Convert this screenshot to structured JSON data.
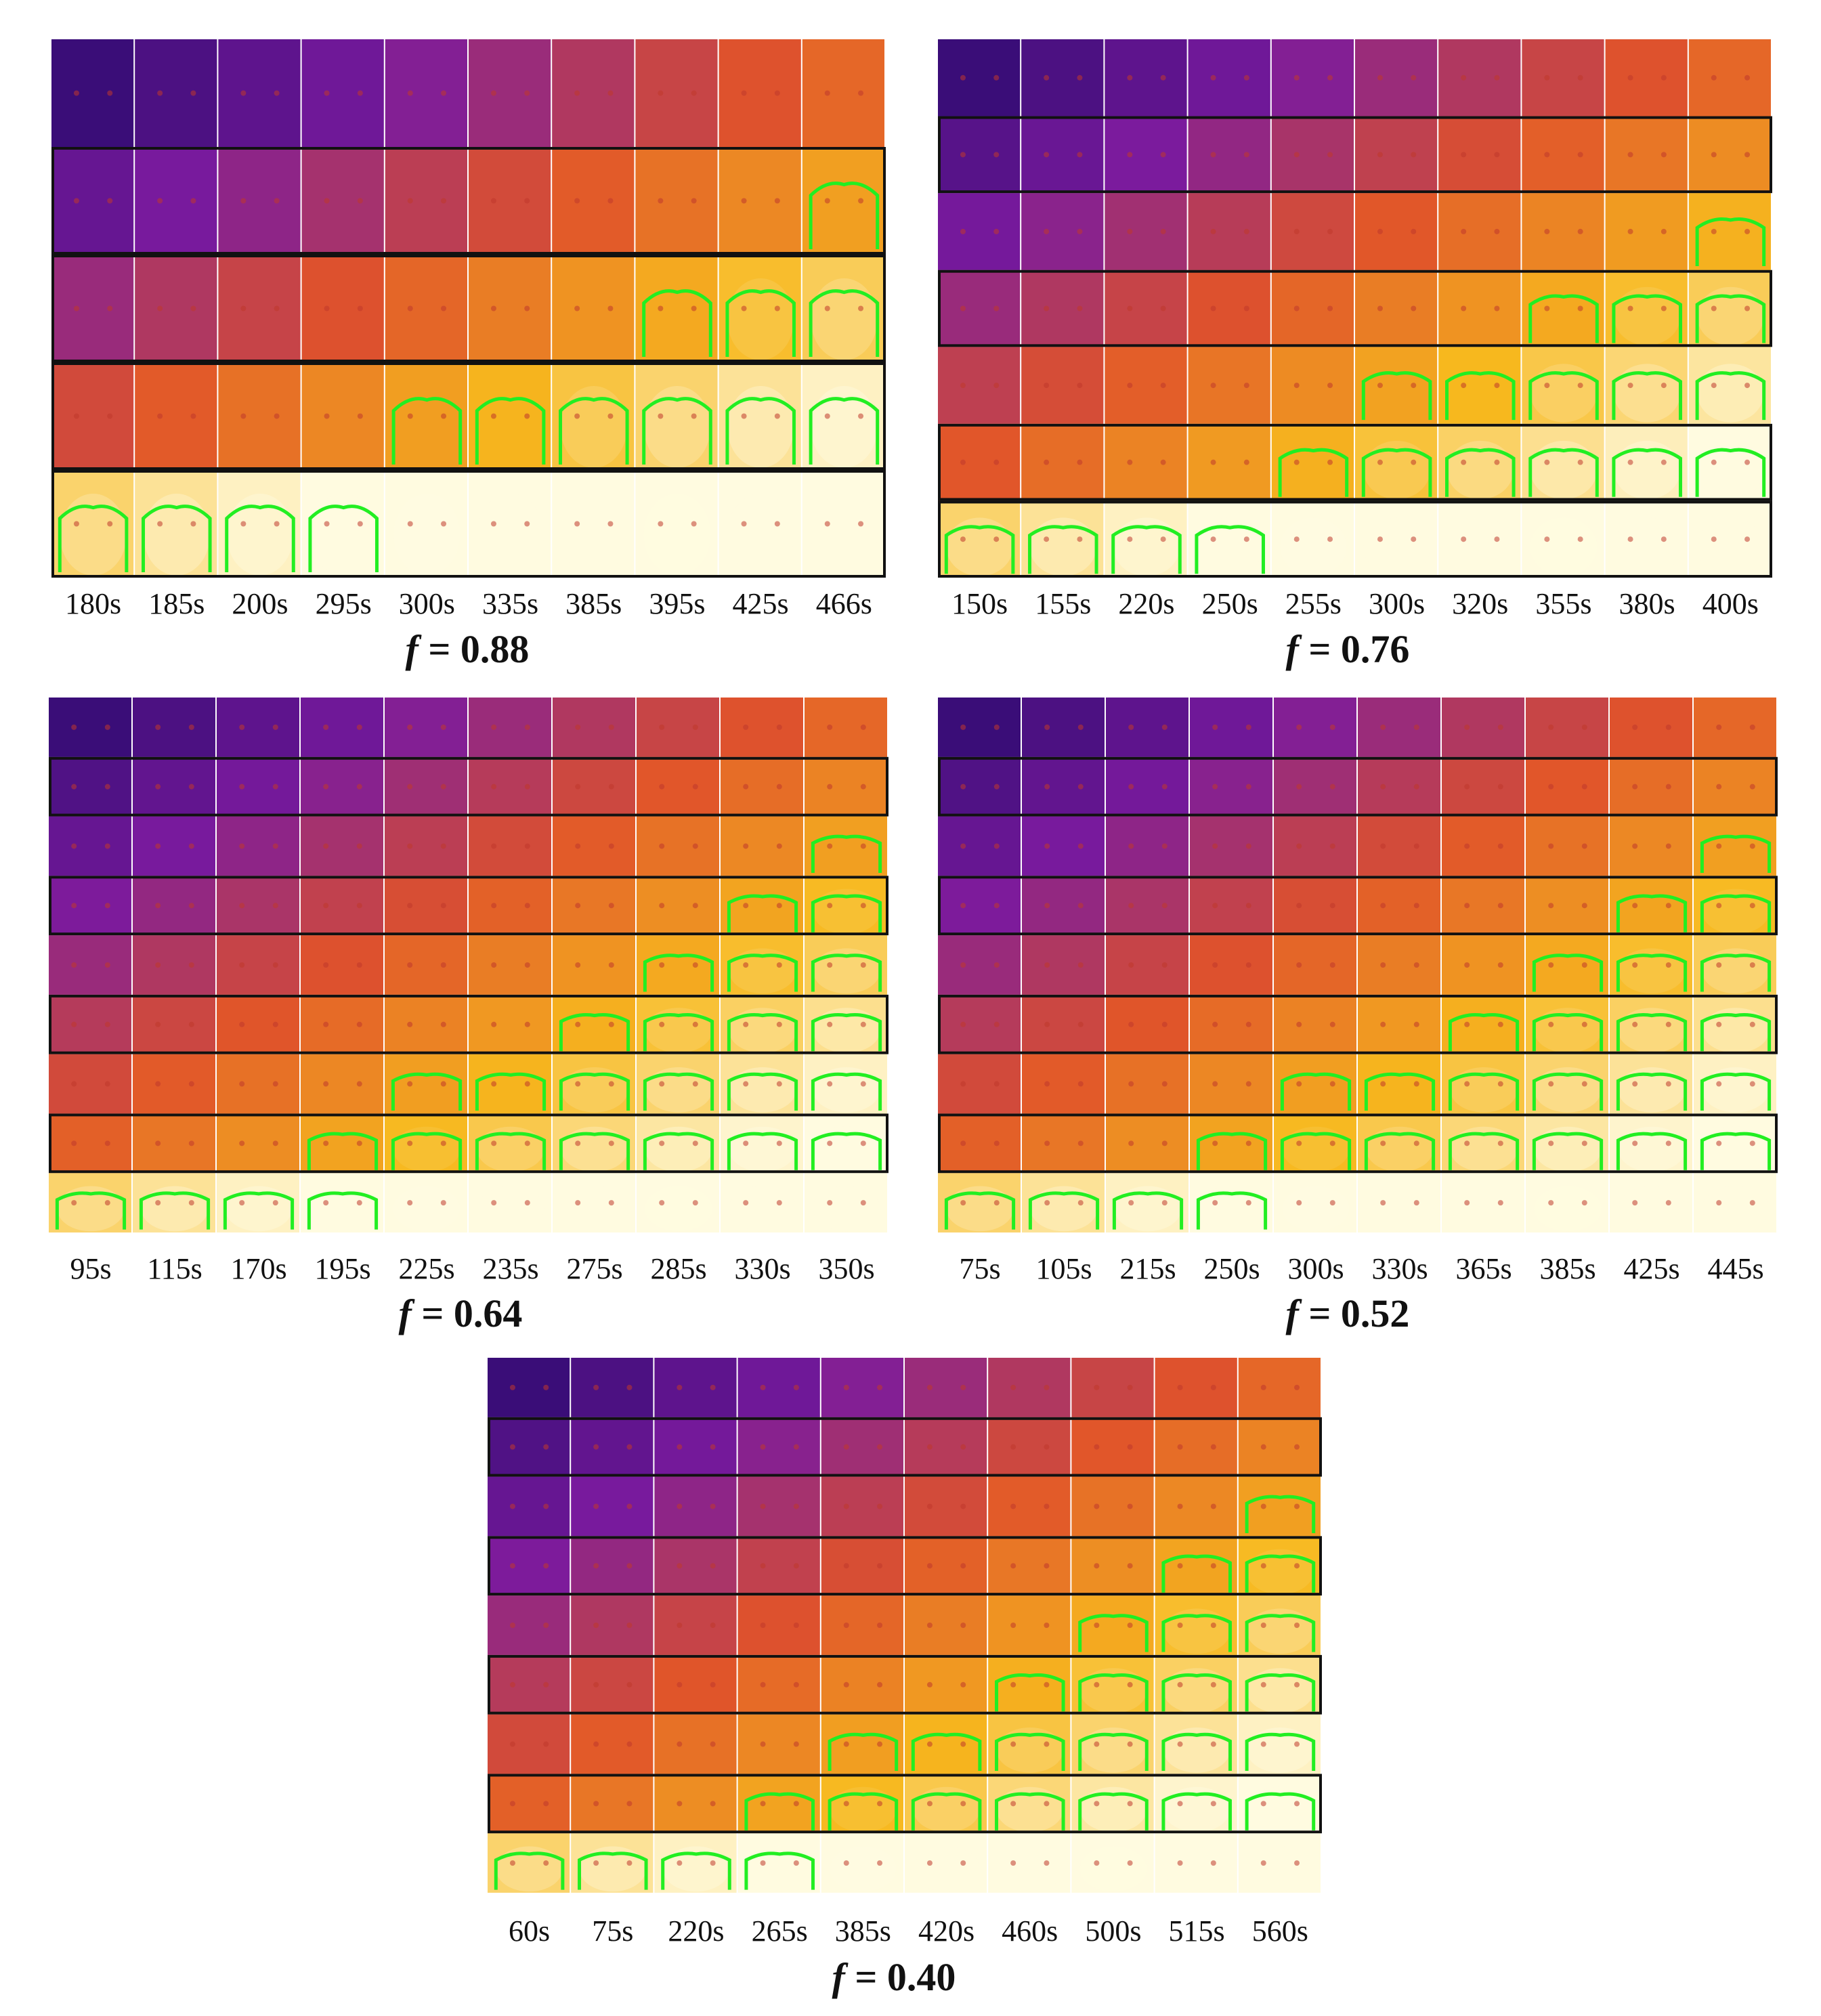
{
  "figure": {
    "panels": [
      {
        "id": "f088",
        "f_symbol": "f",
        "f_value": "= 0.88",
        "rows": 5,
        "boxed_rows": [
          1,
          2,
          3,
          4
        ],
        "times": [
          "180s",
          "185s",
          "200s",
          "295s",
          "300s",
          "335s",
          "385s",
          "395s",
          "425s",
          "466s"
        ]
      },
      {
        "id": "f076",
        "f_symbol": "f",
        "f_value": "= 0.76",
        "rows": 7,
        "boxed_rows": [
          1,
          3,
          5,
          6
        ],
        "times": [
          "150s",
          "155s",
          "220s",
          "250s",
          "255s",
          "300s",
          "320s",
          "355s",
          "380s",
          "400s"
        ]
      },
      {
        "id": "f064",
        "f_symbol": "f",
        "f_value": "= 0.64",
        "rows": 9,
        "boxed_rows": [
          1,
          3,
          5,
          7
        ],
        "times": [
          "95s",
          "115s",
          "170s",
          "195s",
          "225s",
          "235s",
          "275s",
          "285s",
          "330s",
          "350s"
        ]
      },
      {
        "id": "f052",
        "f_symbol": "f",
        "f_value": "= 0.52",
        "rows": 9,
        "boxed_rows": [
          1,
          3,
          5,
          7
        ],
        "times": [
          "75s",
          "105s",
          "215s",
          "250s",
          "300s",
          "330s",
          "365s",
          "385s",
          "425s",
          "445s"
        ]
      },
      {
        "id": "f040",
        "f_symbol": "f",
        "f_value": "= 0.40",
        "rows": 9,
        "boxed_rows": [
          1,
          3,
          5,
          7
        ],
        "times": [
          "60s",
          "75s",
          "220s",
          "265s",
          "385s",
          "420s",
          "460s",
          "500s",
          "515s",
          "560s"
        ]
      }
    ],
    "colors": {
      "cold": "#2a0a6e",
      "cool": "#7a1a9e",
      "warm": "#e0532a",
      "hot": "#f7b81e",
      "very_hot": "#fffbe0",
      "flame_front": "#22ee22",
      "box_border": "#111111"
    }
  }
}
